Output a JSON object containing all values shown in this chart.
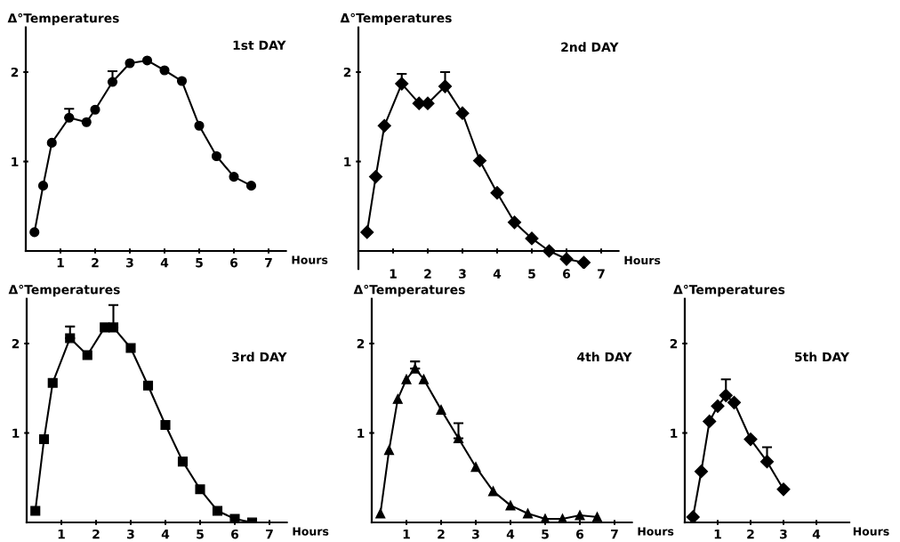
{
  "chart_data": [
    {
      "type": "line",
      "title": "1st DAY",
      "xlabel": "Hours",
      "ylabel": "Δ°Temperatures",
      "marker": "circle",
      "xlim": [
        0,
        7.5
      ],
      "ylim": [
        0,
        2.5
      ],
      "xticks": [
        1,
        2,
        3,
        4,
        5,
        6,
        7
      ],
      "yticks": [
        1,
        2
      ],
      "grid": false,
      "legend": false,
      "x": [
        0.25,
        0.5,
        0.75,
        1.25,
        1.75,
        2,
        2.5,
        3,
        3.5,
        4,
        4.5,
        5,
        5.5,
        6,
        6.5
      ],
      "series": [
        {
          "color": "#000000",
          "values": [
            0.21,
            0.73,
            1.21,
            1.49,
            1.44,
            1.58,
            1.89,
            2.1,
            2.13,
            2.02,
            1.9,
            1.4,
            1.06,
            0.83,
            0.73
          ],
          "errors": [
            null,
            null,
            null,
            [
              1.49,
              1.59
            ],
            null,
            null,
            [
              1.89,
              2.01
            ],
            null,
            null,
            null,
            null,
            null,
            null,
            null,
            null
          ]
        }
      ]
    },
    {
      "type": "line",
      "title": "2nd DAY",
      "xlabel": "Hours",
      "ylabel": "Δ°Temperatures",
      "marker": "diamond",
      "xlim": [
        0,
        7.5
      ],
      "ylim": [
        -0.2,
        2.5
      ],
      "xticks": [
        1,
        2,
        3,
        4,
        5,
        6,
        7
      ],
      "yticks": [
        1,
        2
      ],
      "grid": false,
      "legend": false,
      "x": [
        0.25,
        0.5,
        0.75,
        1.25,
        1.75,
        2,
        2.5,
        3,
        3.5,
        4,
        4.5,
        5,
        5.5,
        6,
        6.5
      ],
      "series": [
        {
          "color": "#000000",
          "values": [
            0.21,
            0.83,
            1.4,
            1.87,
            1.65,
            1.65,
            1.84,
            1.54,
            1.01,
            0.65,
            0.32,
            0.14,
            0.0,
            -0.09,
            -0.13
          ],
          "errors": [
            null,
            null,
            null,
            [
              1.87,
              1.98
            ],
            null,
            null,
            [
              1.84,
              2.0
            ],
            null,
            null,
            null,
            null,
            null,
            null,
            null,
            null
          ]
        }
      ]
    },
    {
      "type": "line",
      "title": "3rd DAY",
      "xlabel": "Hours",
      "ylabel": "Δ°Temperatures",
      "marker": "square",
      "xlim": [
        0,
        7.5
      ],
      "ylim": [
        0,
        2.5
      ],
      "xticks": [
        1,
        2,
        3,
        4,
        5,
        6,
        7
      ],
      "yticks": [
        1,
        2
      ],
      "grid": false,
      "legend": false,
      "x": [
        0.25,
        0.5,
        0.75,
        1.25,
        1.75,
        2.25,
        2.5,
        3,
        3.5,
        4,
        4.5,
        5,
        5.5,
        6,
        6.5
      ],
      "series": [
        {
          "color": "#000000",
          "values": [
            0.13,
            0.93,
            1.56,
            2.06,
            1.87,
            2.18,
            2.18,
            1.95,
            1.53,
            1.09,
            0.68,
            0.37,
            0.13,
            0.04,
            0.0
          ],
          "errors": [
            null,
            null,
            null,
            [
              2.06,
              2.19
            ],
            null,
            null,
            [
              2.18,
              2.43
            ],
            null,
            null,
            null,
            null,
            null,
            null,
            null,
            null
          ]
        }
      ]
    },
    {
      "type": "line",
      "title": "4th DAY",
      "xlabel": "Hours",
      "ylabel": "Δ°Temperatures",
      "marker": "triangle",
      "xlim": [
        0,
        7.5
      ],
      "ylim": [
        0,
        2.5
      ],
      "xticks": [
        1,
        2,
        3,
        4,
        5,
        6,
        7
      ],
      "yticks": [
        1,
        2
      ],
      "grid": false,
      "legend": false,
      "x": [
        0.25,
        0.5,
        0.75,
        1,
        1.25,
        1.5,
        2,
        2.5,
        3,
        3.5,
        4,
        4.5,
        5,
        5.5,
        6,
        6.5
      ],
      "series": [
        {
          "color": "#000000",
          "values": [
            0.1,
            0.81,
            1.38,
            1.6,
            1.72,
            1.6,
            1.26,
            0.94,
            0.62,
            0.35,
            0.19,
            0.1,
            0.04,
            0.04,
            0.08,
            0.06
          ],
          "errors": [
            null,
            null,
            null,
            null,
            [
              1.72,
              1.8
            ],
            null,
            null,
            [
              0.94,
              1.11
            ],
            null,
            null,
            null,
            null,
            null,
            null,
            null,
            null
          ]
        }
      ]
    },
    {
      "type": "line",
      "title": "5th DAY",
      "xlabel": "Hours",
      "ylabel": "Δ°Temperatures",
      "marker": "diamond",
      "xlim": [
        0,
        5
      ],
      "ylim": [
        0,
        2.5
      ],
      "xticks": [
        1,
        2,
        3,
        4
      ],
      "yticks": [
        1,
        2
      ],
      "grid": false,
      "legend": false,
      "x": [
        0.25,
        0.5,
        0.75,
        1,
        1.25,
        1.5,
        2,
        2.5,
        3
      ],
      "series": [
        {
          "color": "#000000",
          "values": [
            0.06,
            0.57,
            1.13,
            1.3,
            1.42,
            1.34,
            0.93,
            0.68,
            0.37
          ],
          "errors": [
            null,
            null,
            null,
            null,
            [
              1.42,
              1.6
            ],
            null,
            null,
            [
              0.68,
              0.84
            ],
            null
          ]
        }
      ]
    }
  ]
}
